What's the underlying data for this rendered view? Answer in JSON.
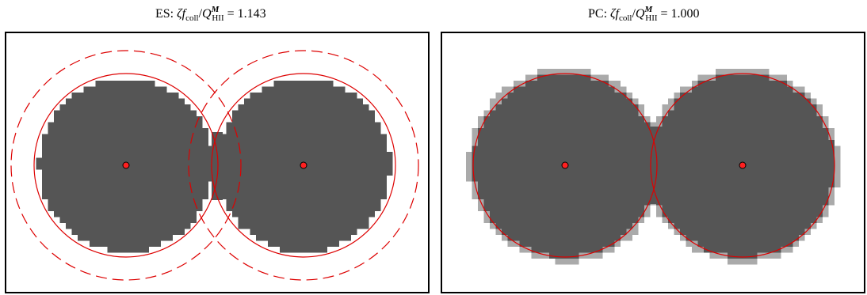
{
  "panels": [
    {
      "title_prefix": "ES:",
      "title_sym_zeta": "ζ",
      "title_sym_f": "f",
      "title_sub_coll": "coll",
      "title_sym_Q": "Q",
      "title_sup_M": "M",
      "title_sub_HII": "HII",
      "title_value": "= 1.143",
      "region_color": "#555555",
      "outline_style": "solid + dashed",
      "pixelation": "coarse"
    },
    {
      "title_prefix": "PC:",
      "title_sym_zeta": "ζ",
      "title_sym_f": "f",
      "title_sub_coll": "coll",
      "title_sym_Q": "Q",
      "title_sup_M": "M",
      "title_sub_HII": "HII",
      "title_value": "= 1.000",
      "region_color": "#555555",
      "outline_style": "solid",
      "pixelation": "fine"
    }
  ],
  "colors": {
    "region": "#555555",
    "soft_edge": "#aaaaaa",
    "circle": "#dd0000",
    "frame": "#000000"
  }
}
